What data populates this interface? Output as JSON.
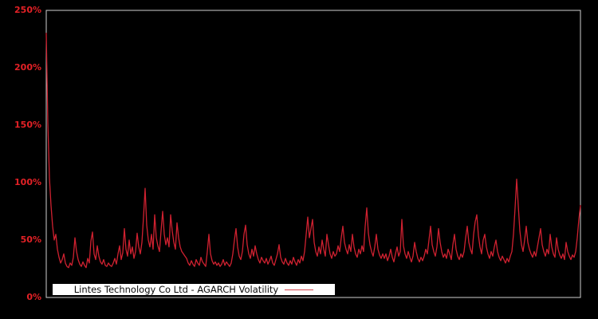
{
  "window": {
    "background_color": "#000000"
  },
  "axis": {
    "frame_color": "#cfcfcf",
    "tick_label_color": "#e32126"
  },
  "legend": {
    "label": "Lintes Technology Co Ltd - AGARCH Volatility",
    "background_color": "#ffffff",
    "text_color": "#0a0a0a",
    "line_sample_color": "#d8444c",
    "position": "bottom-left-inside"
  },
  "chart_data": {
    "type": "line",
    "title": "",
    "xlabel": "",
    "ylabel": "",
    "grid": false,
    "ylim": [
      0,
      250
    ],
    "y_unit": "%",
    "yticks": [
      0,
      50,
      100,
      150,
      200,
      250
    ],
    "ytick_labels": [
      "0%",
      "50%",
      "100%",
      "150%",
      "200%",
      "250%"
    ],
    "xtick_labels": [],
    "legend_position": "bottom-left",
    "series": [
      {
        "name": "Lintes Technology Co Ltd - AGARCH Volatility",
        "color": "#cf2130",
        "unit": "%",
        "values": [
          230,
          152,
          104,
          80,
          62,
          50,
          55,
          42,
          35,
          30,
          33,
          38,
          30,
          27,
          26,
          30,
          28,
          35,
          52,
          40,
          33,
          29,
          27,
          31,
          28,
          26,
          34,
          30,
          49,
          57,
          38,
          33,
          45,
          36,
          31,
          29,
          33,
          28,
          27,
          30,
          28,
          27,
          30,
          34,
          29,
          38,
          45,
          33,
          39,
          60,
          42,
          36,
          50,
          38,
          44,
          34,
          40,
          56,
          44,
          38,
          48,
          70,
          95,
          63,
          50,
          44,
          55,
          42,
          72,
          52,
          45,
          40,
          58,
          75,
          55,
          46,
          52,
          44,
          72,
          58,
          48,
          42,
          65,
          52,
          44,
          40,
          38,
          36,
          34,
          30,
          28,
          32,
          29,
          27,
          33,
          30,
          28,
          35,
          31,
          29,
          27,
          40,
          55,
          38,
          32,
          29,
          31,
          28,
          30,
          27,
          29,
          33,
          28,
          31,
          29,
          27,
          30,
          38,
          50,
          60,
          44,
          36,
          33,
          40,
          55,
          63,
          46,
          38,
          34,
          42,
          36,
          45,
          38,
          33,
          30,
          35,
          32,
          30,
          34,
          29,
          32,
          36,
          30,
          28,
          33,
          38,
          46,
          35,
          31,
          29,
          34,
          30,
          28,
          32,
          29,
          35,
          31,
          28,
          33,
          30,
          36,
          32,
          40,
          55,
          70,
          52,
          60,
          68,
          48,
          40,
          36,
          44,
          38,
          50,
          42,
          36,
          55,
          46,
          38,
          34,
          40,
          36,
          38,
          45,
          40,
          52,
          62,
          48,
          42,
          38,
          46,
          40,
          55,
          44,
          38,
          35,
          42,
          38,
          45,
          40,
          62,
          78,
          56,
          46,
          40,
          36,
          44,
          55,
          42,
          37,
          34,
          38,
          34,
          38,
          32,
          36,
          42,
          35,
          31,
          38,
          44,
          36,
          40,
          68,
          45,
          38,
          34,
          40,
          35,
          31,
          36,
          48,
          40,
          34,
          31,
          35,
          32,
          36,
          42,
          38,
          50,
          62,
          46,
          40,
          36,
          44,
          60,
          48,
          40,
          35,
          38,
          34,
          42,
          38,
          33,
          46,
          55,
          42,
          36,
          33,
          38,
          35,
          40,
          52,
          62,
          48,
          42,
          38,
          55,
          66,
          72,
          54,
          44,
          38,
          50,
          55,
          44,
          38,
          34,
          40,
          36,
          44,
          50,
          40,
          35,
          32,
          36,
          33,
          30,
          34,
          31,
          36,
          40,
          55,
          78,
          103,
          80,
          58,
          46,
          40,
          50,
          62,
          48,
          42,
          38,
          35,
          40,
          36,
          44,
          52,
          60,
          46,
          40,
          36,
          42,
          38,
          55,
          44,
          38,
          35,
          52,
          42,
          37,
          34,
          38,
          33,
          48,
          40,
          36,
          33,
          37,
          35,
          40,
          52,
          68,
          80
        ]
      }
    ]
  }
}
